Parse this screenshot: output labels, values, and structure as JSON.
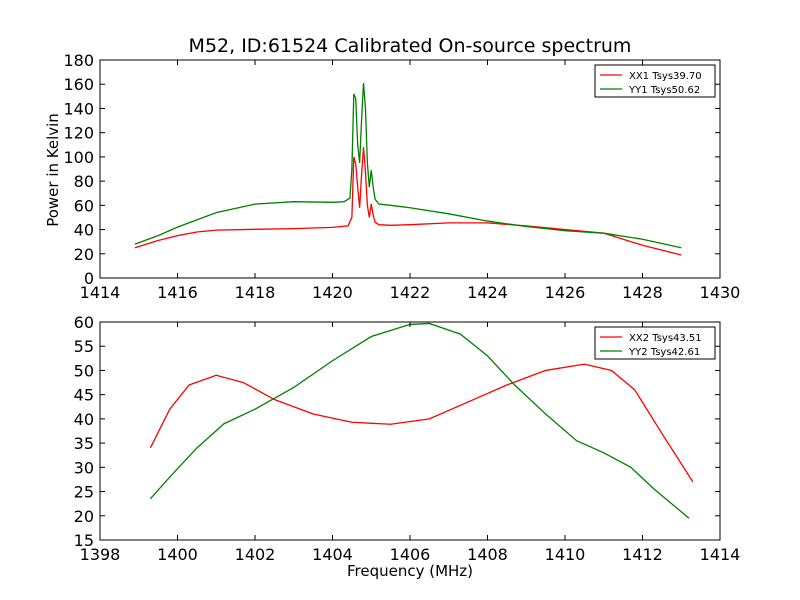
{
  "chart_data": [
    {
      "type": "line",
      "title": "M52, ID:61524 Calibrated On-source spectrum",
      "xlabel": "",
      "ylabel": "Power in Kelvin",
      "xlim": [
        1414,
        1430
      ],
      "ylim": [
        0,
        180
      ],
      "xticks": [
        1414,
        1416,
        1418,
        1420,
        1422,
        1424,
        1426,
        1428,
        1430
      ],
      "yticks": [
        0,
        20,
        40,
        60,
        80,
        100,
        120,
        140,
        160,
        180
      ],
      "legend_position": "top-right",
      "grid": false,
      "series": [
        {
          "name": "XX1 Tsys39.70",
          "color": "#ff0000",
          "points": [
            [
              1414.9,
              25
            ],
            [
              1415.5,
              31
            ],
            [
              1416.0,
              35
            ],
            [
              1416.5,
              38
            ],
            [
              1417.0,
              39.5
            ],
            [
              1418.0,
              40.2
            ],
            [
              1419.0,
              40.8
            ],
            [
              1420.0,
              41.8
            ],
            [
              1420.4,
              43
            ],
            [
              1420.5,
              50
            ],
            [
              1420.55,
              100
            ],
            [
              1420.6,
              94
            ],
            [
              1420.65,
              75
            ],
            [
              1420.7,
              58
            ],
            [
              1420.75,
              85
            ],
            [
              1420.8,
              108
            ],
            [
              1420.85,
              88
            ],
            [
              1420.9,
              60
            ],
            [
              1420.95,
              50
            ],
            [
              1421.0,
              61
            ],
            [
              1421.05,
              52
            ],
            [
              1421.1,
              46
            ],
            [
              1421.2,
              44
            ],
            [
              1421.5,
              43.5
            ],
            [
              1422.0,
              44
            ],
            [
              1423.0,
              45.5
            ],
            [
              1424.0,
              45.5
            ],
            [
              1425.0,
              43
            ],
            [
              1426.0,
              40
            ],
            [
              1427.0,
              37
            ],
            [
              1428.0,
              27
            ],
            [
              1429.0,
              19
            ]
          ]
        },
        {
          "name": "YY1 Tsys50.62",
          "color": "#008000",
          "points": [
            [
              1414.9,
              28
            ],
            [
              1415.5,
              35
            ],
            [
              1416.0,
              42
            ],
            [
              1416.5,
              48
            ],
            [
              1417.0,
              54
            ],
            [
              1418.0,
              61
            ],
            [
              1419.0,
              63
            ],
            [
              1420.0,
              62.5
            ],
            [
              1420.3,
              63
            ],
            [
              1420.45,
              66
            ],
            [
              1420.5,
              90
            ],
            [
              1420.55,
              152
            ],
            [
              1420.6,
              148
            ],
            [
              1420.65,
              110
            ],
            [
              1420.7,
              95
            ],
            [
              1420.75,
              130
            ],
            [
              1420.8,
              161
            ],
            [
              1420.85,
              140
            ],
            [
              1420.9,
              95
            ],
            [
              1420.95,
              75
            ],
            [
              1421.0,
              89
            ],
            [
              1421.05,
              75
            ],
            [
              1421.1,
              65
            ],
            [
              1421.2,
              61
            ],
            [
              1421.5,
              60
            ],
            [
              1422.0,
              58
            ],
            [
              1423.0,
              53
            ],
            [
              1424.0,
              47
            ],
            [
              1425.0,
              42.5
            ],
            [
              1426.0,
              39
            ],
            [
              1427.0,
              37
            ],
            [
              1428.0,
              32
            ],
            [
              1429.0,
              25
            ]
          ]
        }
      ]
    },
    {
      "type": "line",
      "title": "",
      "xlabel": "Frequency (MHz)",
      "ylabel": "",
      "xlim": [
        1398,
        1414
      ],
      "ylim": [
        15,
        60
      ],
      "xticks": [
        1398,
        1400,
        1402,
        1404,
        1406,
        1408,
        1410,
        1412,
        1414
      ],
      "yticks": [
        15,
        20,
        25,
        30,
        35,
        40,
        45,
        50,
        55,
        60
      ],
      "legend_position": "top-right",
      "grid": false,
      "series": [
        {
          "name": "XX2 Tsys43.51",
          "color": "#ff0000",
          "points": [
            [
              1399.3,
              34
            ],
            [
              1399.8,
              42
            ],
            [
              1400.3,
              47
            ],
            [
              1401.0,
              49
            ],
            [
              1401.7,
              47.5
            ],
            [
              1402.5,
              44
            ],
            [
              1403.5,
              41
            ],
            [
              1404.5,
              39.3
            ],
            [
              1405.5,
              38.9
            ],
            [
              1406.5,
              40
            ],
            [
              1407.5,
              43.5
            ],
            [
              1408.5,
              47
            ],
            [
              1409.5,
              50
            ],
            [
              1410.5,
              51.3
            ],
            [
              1411.2,
              50
            ],
            [
              1411.8,
              46
            ],
            [
              1412.5,
              37
            ],
            [
              1413.3,
              27
            ]
          ]
        },
        {
          "name": "YY2 Tsys42.61",
          "color": "#008000",
          "points": [
            [
              1399.3,
              23.5
            ],
            [
              1399.8,
              28
            ],
            [
              1400.5,
              34
            ],
            [
              1401.2,
              39
            ],
            [
              1402.0,
              42
            ],
            [
              1403.0,
              46.5
            ],
            [
              1404.0,
              52
            ],
            [
              1405.0,
              57
            ],
            [
              1406.0,
              59.5
            ],
            [
              1406.5,
              59.7
            ],
            [
              1407.3,
              57.5
            ],
            [
              1408.0,
              53
            ],
            [
              1408.7,
              47
            ],
            [
              1409.5,
              41
            ],
            [
              1410.3,
              35.5
            ],
            [
              1411.0,
              33
            ],
            [
              1411.7,
              30
            ],
            [
              1412.3,
              25.5
            ],
            [
              1413.2,
              19.5
            ]
          ]
        }
      ]
    }
  ]
}
